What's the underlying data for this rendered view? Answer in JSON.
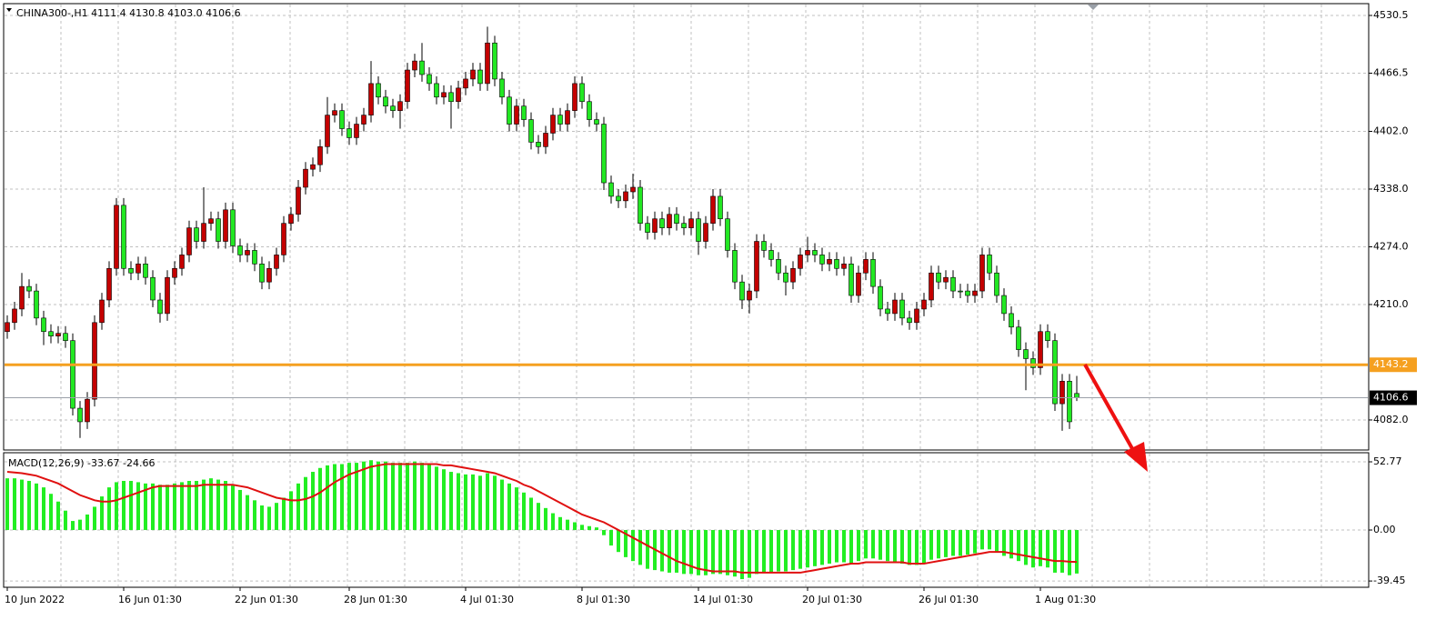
{
  "chart_data": [
    {
      "type": "candlestick",
      "title": "CHINA300-,H1  4111.4 4130.8 4103.0 4106.6",
      "categories": [
        "10 Jun 2022",
        null,
        null,
        null,
        null,
        null,
        null,
        null,
        null,
        null,
        null,
        null,
        null,
        null,
        null,
        null,
        "16 Jun 01:30",
        null,
        null,
        null,
        null,
        null,
        null,
        null,
        null,
        null,
        null,
        null,
        null,
        null,
        null,
        null,
        "22 Jun 01:30",
        null,
        null,
        null,
        null,
        null,
        null,
        null,
        null,
        null,
        null,
        null,
        null,
        null,
        null,
        "28 Jun 01:30",
        null,
        null,
        null,
        null,
        null,
        null,
        null,
        null,
        null,
        null,
        null,
        null,
        null,
        null,
        null,
        "4 Jul 01:30",
        null,
        null,
        null,
        null,
        null,
        null,
        null,
        null,
        null,
        null,
        null,
        null,
        null,
        null,
        null,
        "8 Jul 01:30",
        null,
        null,
        null,
        null,
        null,
        null,
        null,
        null,
        null,
        null,
        null,
        null,
        null,
        null,
        null,
        "14 Jul 01:30",
        null,
        null,
        null,
        null,
        null,
        null,
        null,
        null,
        null,
        null,
        null,
        null,
        null,
        null,
        "20 Jul 01:30",
        null,
        null,
        null,
        null,
        null,
        null,
        null,
        null,
        null,
        null,
        null,
        null,
        null,
        null,
        null,
        "26 Jul 01:30",
        null,
        null,
        null,
        null,
        null,
        null,
        null,
        null,
        null,
        null,
        null,
        null,
        null,
        null,
        null,
        "1 Aug 01:30",
        null,
        null,
        null,
        null,
        null
      ],
      "open": [
        4180,
        4190,
        4205,
        4230,
        4225,
        4195,
        4180,
        4175,
        4178,
        4170,
        4095,
        4080,
        4105,
        4190,
        4215,
        4250,
        4320,
        4250,
        4245,
        4255,
        4240,
        4215,
        4200,
        4240,
        4250,
        4265,
        4295,
        4280,
        4300,
        4305,
        4280,
        4315,
        4275,
        4265,
        4270,
        4255,
        4235,
        4250,
        4265,
        4300,
        4310,
        4340,
        4360,
        4365,
        4385,
        4420,
        4425,
        4405,
        4395,
        4410,
        4420,
        4455,
        4440,
        4430,
        4425,
        4435,
        4470,
        4480,
        4465,
        4455,
        4440,
        4445,
        4435,
        4450,
        4460,
        4470,
        4455,
        4500,
        4460,
        4440,
        4410,
        4430,
        4415,
        4390,
        4385,
        4400,
        4420,
        4410,
        4425,
        4455,
        4435,
        4415,
        4410,
        4345,
        4330,
        4325,
        4335,
        4340,
        4300,
        4290,
        4305,
        4295,
        4310,
        4300,
        4295,
        4305,
        4280,
        4300,
        4330,
        4305,
        4270,
        4235,
        4215,
        4225,
        4280,
        4270,
        4260,
        4245,
        4235,
        4250,
        4265,
        4270,
        4265,
        4255,
        4260,
        4250,
        4255,
        4220,
        4245,
        4260,
        4230,
        4205,
        4200,
        4215,
        4195,
        4190,
        4205,
        4215,
        4245,
        4235,
        4240,
        4225,
        4225,
        4220,
        4225,
        4265,
        4245,
        4220,
        4200,
        4185,
        4160,
        4150,
        4140,
        4180,
        4170,
        4100,
        4125,
        4111.4
      ],
      "high": [
        4198,
        4213,
        4245,
        4238,
        4233,
        4203,
        4188,
        4186,
        4186,
        4178,
        4103,
        4113,
        4198,
        4223,
        4258,
        4328,
        4328,
        4258,
        4263,
        4263,
        4248,
        4223,
        4248,
        4258,
        4273,
        4303,
        4303,
        4340,
        4313,
        4313,
        4323,
        4323,
        4283,
        4278,
        4278,
        4263,
        4258,
        4273,
        4308,
        4318,
        4348,
        4368,
        4373,
        4393,
        4440,
        4433,
        4433,
        4413,
        4418,
        4428,
        4480,
        4463,
        4448,
        4438,
        4443,
        4478,
        4488,
        4500,
        4473,
        4463,
        4453,
        4453,
        4458,
        4468,
        4478,
        4478,
        4518,
        4508,
        4468,
        4448,
        4438,
        4438,
        4423,
        4398,
        4408,
        4428,
        4428,
        4433,
        4463,
        4463,
        4443,
        4423,
        4418,
        4353,
        4338,
        4343,
        4355,
        4348,
        4308,
        4313,
        4313,
        4318,
        4318,
        4308,
        4313,
        4313,
        4308,
        4338,
        4338,
        4313,
        4278,
        4243,
        4233,
        4288,
        4288,
        4278,
        4268,
        4253,
        4258,
        4273,
        4285,
        4278,
        4273,
        4268,
        4268,
        4263,
        4263,
        4253,
        4268,
        4268,
        4238,
        4213,
        4223,
        4223,
        4203,
        4213,
        4223,
        4253,
        4253,
        4248,
        4248,
        4233,
        4233,
        4233,
        4273,
        4273,
        4253,
        4228,
        4208,
        4193,
        4168,
        4158,
        4188,
        4188,
        4178,
        4133,
        4133,
        4130.8
      ],
      "low": [
        4172,
        4182,
        4197,
        4217,
        4187,
        4165,
        4167,
        4167,
        4162,
        4087,
        4062,
        4072,
        4097,
        4182,
        4207,
        4242,
        4242,
        4237,
        4237,
        4232,
        4207,
        4190,
        4192,
        4232,
        4242,
        4257,
        4272,
        4272,
        4292,
        4272,
        4272,
        4267,
        4257,
        4257,
        4247,
        4227,
        4227,
        4242,
        4257,
        4292,
        4302,
        4332,
        4352,
        4357,
        4377,
        4412,
        4397,
        4387,
        4387,
        4402,
        4412,
        4432,
        4422,
        4417,
        4405,
        4427,
        4462,
        4457,
        4447,
        4432,
        4432,
        4405,
        4427,
        4442,
        4452,
        4447,
        4447,
        4452,
        4432,
        4402,
        4402,
        4407,
        4382,
        4377,
        4377,
        4392,
        4402,
        4402,
        4417,
        4427,
        4407,
        4402,
        4337,
        4322,
        4317,
        4317,
        4327,
        4292,
        4282,
        4282,
        4287,
        4287,
        4292,
        4287,
        4287,
        4265,
        4272,
        4292,
        4297,
        4262,
        4227,
        4205,
        4200,
        4217,
        4262,
        4252,
        4237,
        4220,
        4227,
        4242,
        4257,
        4257,
        4247,
        4247,
        4242,
        4242,
        4212,
        4212,
        4237,
        4222,
        4197,
        4192,
        4192,
        4187,
        4182,
        4182,
        4197,
        4207,
        4227,
        4227,
        4217,
        4217,
        4212,
        4212,
        4217,
        4237,
        4212,
        4192,
        4177,
        4152,
        4115,
        4132,
        4132,
        4162,
        4092,
        4070,
        4072,
        4103
      ],
      "close": [
        4190,
        4205,
        4230,
        4225,
        4195,
        4180,
        4175,
        4178,
        4170,
        4095,
        4080,
        4105,
        4190,
        4215,
        4250,
        4320,
        4250,
        4245,
        4255,
        4240,
        4215,
        4200,
        4240,
        4250,
        4265,
        4295,
        4280,
        4300,
        4305,
        4280,
        4315,
        4275,
        4265,
        4270,
        4255,
        4235,
        4250,
        4265,
        4300,
        4310,
        4340,
        4360,
        4365,
        4385,
        4420,
        4425,
        4405,
        4395,
        4410,
        4420,
        4455,
        4440,
        4430,
        4425,
        4435,
        4470,
        4480,
        4465,
        4455,
        4440,
        4445,
        4435,
        4450,
        4460,
        4470,
        4455,
        4500,
        4460,
        4440,
        4410,
        4430,
        4415,
        4390,
        4385,
        4400,
        4420,
        4410,
        4425,
        4455,
        4435,
        4415,
        4410,
        4345,
        4330,
        4325,
        4335,
        4340,
        4300,
        4290,
        4305,
        4295,
        4310,
        4300,
        4295,
        4305,
        4280,
        4300,
        4330,
        4305,
        4270,
        4235,
        4215,
        4225,
        4280,
        4270,
        4260,
        4245,
        4235,
        4250,
        4265,
        4270,
        4265,
        4255,
        4260,
        4250,
        4255,
        4220,
        4245,
        4260,
        4230,
        4205,
        4200,
        4215,
        4195,
        4190,
        4205,
        4215,
        4245,
        4235,
        4240,
        4225,
        4225,
        4220,
        4225,
        4265,
        4245,
        4220,
        4200,
        4185,
        4160,
        4150,
        4140,
        4180,
        4170,
        4100,
        4125,
        4080,
        4106.6
      ],
      "up_color": "#c40000",
      "down_color": "#22e822",
      "ylim": [
        4048.7,
        4543.6
      ],
      "yticks": [
        4530.5,
        4466.5,
        {
          "value": 4402,
          "label": "4402.0"
        },
        {
          "value": 4338,
          "label": "4338.0"
        },
        {
          "value": 4274,
          "label": "4274.0"
        },
        {
          "value": 4210,
          "label": "4210.0"
        },
        {
          "value": 4082,
          "label": "4082.0"
        }
      ],
      "grid": true,
      "level": {
        "value": 4143.2,
        "color": "#f5a020"
      },
      "last_price": {
        "value": 4106.6,
        "color": "#9aa0a8"
      }
    },
    {
      "type": "macd",
      "title": "MACD(12,26,9) -33.67 -24.66",
      "histogram": {
        "color": "#22ee22",
        "values": [
          40,
          40,
          39,
          38,
          36,
          33,
          28,
          22,
          15,
          7,
          8,
          12,
          18,
          26,
          33,
          37,
          38,
          38,
          37,
          36,
          36,
          35,
          35,
          36,
          37,
          38,
          38,
          39,
          40,
          39,
          38,
          35,
          31,
          27,
          23,
          19,
          18,
          21,
          25,
          30,
          36,
          41,
          45,
          48,
          50,
          51,
          51,
          52,
          52,
          53,
          54,
          53,
          53,
          52,
          52,
          52,
          53,
          52,
          51,
          49,
          47,
          45,
          44,
          43,
          43,
          42,
          44,
          42,
          39,
          36,
          33,
          29,
          25,
          21,
          17,
          13,
          10,
          8,
          6,
          4,
          3,
          2,
          -4,
          -12,
          -17,
          -21,
          -24,
          -27,
          -30,
          -31,
          -32,
          -33,
          -33,
          -34,
          -34,
          -35,
          -35,
          -34,
          -34,
          -35,
          -36,
          -38,
          -37,
          -34,
          -33,
          -33,
          -32,
          -32,
          -31,
          -30,
          -29,
          -28,
          -27,
          -26,
          -25,
          -25,
          -26,
          -24,
          -22,
          -22,
          -23,
          -24,
          -25,
          -26,
          -27,
          -27,
          -26,
          -23,
          -22,
          -21,
          -20,
          -20,
          -19,
          -18,
          -15,
          -15,
          -17,
          -20,
          -22,
          -24,
          -27,
          -29,
          -28,
          -29,
          -33,
          -33,
          -35,
          -33.67
        ]
      },
      "signal": {
        "color": "#e01010",
        "values": [
          45,
          44.5,
          44,
          43,
          42,
          40,
          38,
          36,
          33,
          30,
          27,
          25,
          23,
          22,
          22,
          23,
          25,
          27,
          29,
          31,
          33,
          34,
          34,
          34,
          34,
          34,
          34,
          35,
          35,
          35,
          35,
          35,
          34,
          33,
          31,
          29,
          27,
          25,
          24,
          23,
          23,
          24,
          26,
          29,
          33,
          37,
          40,
          43,
          45,
          47,
          49,
          50,
          51,
          51,
          51,
          51,
          51,
          51,
          51,
          51,
          50,
          50,
          49,
          48,
          47,
          46,
          45,
          44,
          42,
          40,
          38,
          35,
          33,
          30,
          27,
          24,
          21,
          18,
          15,
          12,
          10,
          8,
          6,
          3,
          0,
          -3,
          -6,
          -9,
          -12,
          -15,
          -18,
          -21,
          -24,
          -26,
          -28,
          -30,
          -31,
          -32,
          -32,
          -32,
          -32,
          -33,
          -33,
          -33,
          -33,
          -33,
          -33,
          -33,
          -33,
          -33,
          -32,
          -31,
          -30,
          -29,
          -28,
          -27,
          -26,
          -26,
          -25,
          -25,
          -25,
          -25,
          -25,
          -25,
          -26,
          -26,
          -26,
          -25,
          -24,
          -23,
          -22,
          -21,
          -20,
          -19,
          -18,
          -17,
          -17,
          -17,
          -18,
          -19,
          -20,
          -21,
          -22,
          -23,
          -24,
          -24,
          -24.5,
          -24.66
        ]
      },
      "ylim": [
        -44.3,
        59.8
      ],
      "yticks": [
        52.77,
        {
          "value": 0,
          "label": "0.00"
        },
        -39.45
      ]
    }
  ]
}
